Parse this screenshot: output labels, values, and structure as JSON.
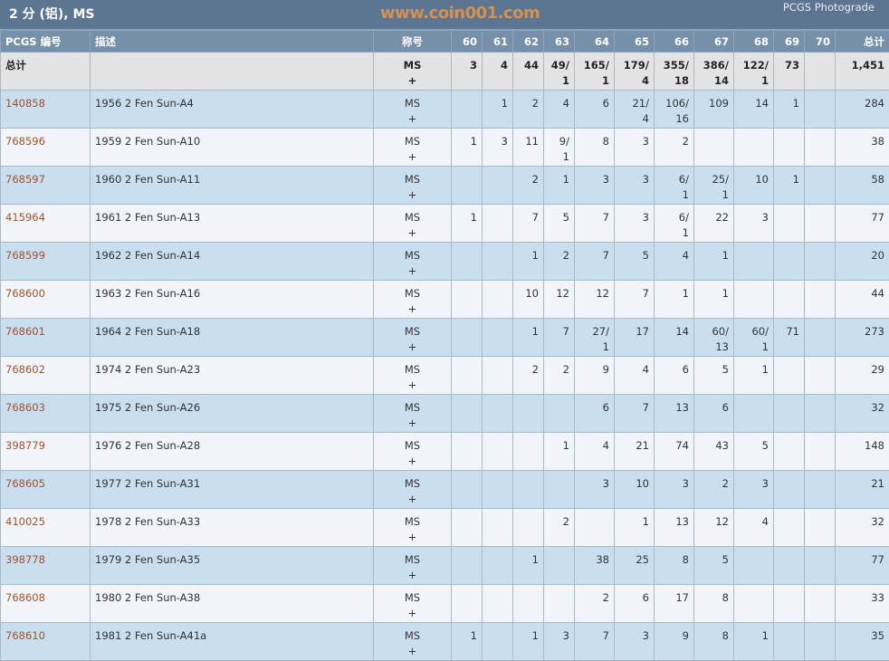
{
  "title": "2 分 (铝), MS",
  "brand": "PCGS Photograde",
  "headers": {
    "pcgs": "PCGS 编号",
    "desc": "描述",
    "desig": "称号",
    "grades": [
      "60",
      "61",
      "62",
      "63",
      "64",
      "65",
      "66",
      "67",
      "68",
      "69",
      "70"
    ],
    "total": "总计"
  },
  "total_row": {
    "label": "总计",
    "desig": "MS",
    "plus": "+",
    "grades": [
      "3",
      "4",
      "44",
      "49/1",
      "165/1",
      "179/4",
      "355/18",
      "386/14",
      "122/1",
      "73",
      ""
    ],
    "total": "1,451"
  },
  "rows": [
    {
      "pcgs": "140858",
      "desc": "1956 2 Fen Sun-A4",
      "desig": "MS",
      "plus": "+",
      "grades": [
        "",
        "1",
        "2",
        "4",
        "6",
        "21/4",
        "106/16",
        "109",
        "14",
        "1",
        ""
      ],
      "total": "284"
    },
    {
      "pcgs": "768596",
      "desc": "1959 2 Fen Sun-A10",
      "desig": "MS",
      "plus": "+",
      "grades": [
        "1",
        "3",
        "11",
        "9/1",
        "8",
        "3",
        "2",
        "",
        "",
        "",
        ""
      ],
      "total": "38"
    },
    {
      "pcgs": "768597",
      "desc": "1960 2 Fen Sun-A11",
      "desig": "MS",
      "plus": "+",
      "grades": [
        "",
        "",
        "2",
        "1",
        "3",
        "3",
        "6/1",
        "25/1",
        "10",
        "1",
        ""
      ],
      "total": "58"
    },
    {
      "pcgs": "415964",
      "desc": "1961 2 Fen Sun-A13",
      "desig": "MS",
      "plus": "+",
      "grades": [
        "1",
        "",
        "7",
        "5",
        "7",
        "3",
        "6/1",
        "22",
        "3",
        "",
        ""
      ],
      "total": "77"
    },
    {
      "pcgs": "768599",
      "desc": "1962 2 Fen Sun-A14",
      "desig": "MS",
      "plus": "+",
      "grades": [
        "",
        "",
        "1",
        "2",
        "7",
        "5",
        "4",
        "1",
        "",
        "",
        ""
      ],
      "total": "20"
    },
    {
      "pcgs": "768600",
      "desc": "1963 2 Fen Sun-A16",
      "desig": "MS",
      "plus": "+",
      "grades": [
        "",
        "",
        "10",
        "12",
        "12",
        "7",
        "1",
        "1",
        "",
        "",
        ""
      ],
      "total": "44"
    },
    {
      "pcgs": "768601",
      "desc": "1964 2 Fen Sun-A18",
      "desig": "MS",
      "plus": "+",
      "grades": [
        "",
        "",
        "1",
        "7",
        "27/1",
        "17",
        "14",
        "60/13",
        "60/1",
        "71",
        ""
      ],
      "total": "273"
    },
    {
      "pcgs": "768602",
      "desc": "1974 2 Fen Sun-A23",
      "desig": "MS",
      "plus": "+",
      "grades": [
        "",
        "",
        "2",
        "2",
        "9",
        "4",
        "6",
        "5",
        "1",
        "",
        ""
      ],
      "total": "29"
    },
    {
      "pcgs": "768603",
      "desc": "1975 2 Fen Sun-A26",
      "desig": "MS",
      "plus": "+",
      "grades": [
        "",
        "",
        "",
        "",
        "6",
        "7",
        "13",
        "6",
        "",
        "",
        ""
      ],
      "total": "32"
    },
    {
      "pcgs": "398779",
      "desc": "1976 2 Fen Sun-A28",
      "desig": "MS",
      "plus": "+",
      "grades": [
        "",
        "",
        "",
        "1",
        "4",
        "21",
        "74",
        "43",
        "5",
        "",
        ""
      ],
      "total": "148"
    },
    {
      "pcgs": "768605",
      "desc": "1977 2 Fen Sun-A31",
      "desig": "MS",
      "plus": "+",
      "grades": [
        "",
        "",
        "",
        "",
        "3",
        "10",
        "3",
        "2",
        "3",
        "",
        ""
      ],
      "total": "21"
    },
    {
      "pcgs": "410025",
      "desc": "1978 2 Fen Sun-A33",
      "desig": "MS",
      "plus": "+",
      "grades": [
        "",
        "",
        "",
        "2",
        "",
        "1",
        "13",
        "12",
        "4",
        "",
        ""
      ],
      "total": "32"
    },
    {
      "pcgs": "398778",
      "desc": "1979 2 Fen Sun-A35",
      "desig": "MS",
      "plus": "+",
      "grades": [
        "",
        "",
        "1",
        "",
        "38",
        "25",
        "8",
        "5",
        "",
        "",
        ""
      ],
      "total": "77"
    },
    {
      "pcgs": "768608",
      "desc": "1980 2 Fen Sun-A38",
      "desig": "MS",
      "plus": "+",
      "grades": [
        "",
        "",
        "",
        "",
        "2",
        "6",
        "17",
        "8",
        "",
        "",
        ""
      ],
      "total": "33"
    },
    {
      "pcgs": "768610",
      "desc": "1981 2 Fen Sun-A41a",
      "desig": "MS",
      "plus": "+",
      "grades": [
        "1",
        "",
        "1",
        "3",
        "7",
        "3",
        "9",
        "8",
        "1",
        "",
        ""
      ],
      "total": "35"
    }
  ],
  "watermark": "www.coin001.com",
  "colors": {
    "header": "#5c7591",
    "col_header": "#7690aa",
    "row_odd": "#c9dff0",
    "row_even": "#f1f5f9",
    "link": "#a0522d"
  }
}
